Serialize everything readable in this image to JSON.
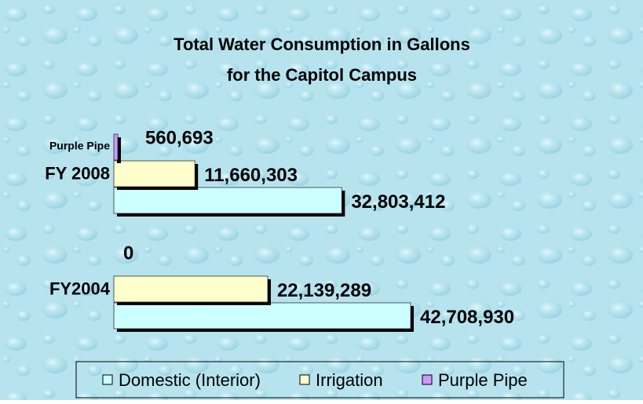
{
  "chart_data": {
    "type": "hbar",
    "title": [
      "Total Water Consumption in Gallons",
      "for the Capitol Campus"
    ],
    "categories": [
      "FY 2008",
      "FY2004"
    ],
    "annotation": "Purple Pipe",
    "series": [
      {
        "name": "Domestic (Interior)",
        "color": "#ccffff",
        "values": [
          32803412,
          42708930
        ],
        "value_labels": [
          "32,803,412",
          "42,708,930"
        ]
      },
      {
        "name": "Irrigation",
        "color": "#ffffcc",
        "values": [
          11660303,
          22139289
        ],
        "value_labels": [
          "11,660,303",
          "22,139,289"
        ]
      },
      {
        "name": "Purple Pipe",
        "color": "#cc99ff",
        "values": [
          560693,
          0
        ],
        "value_labels": [
          "560,693",
          "0"
        ]
      }
    ],
    "legend": "bottom"
  }
}
